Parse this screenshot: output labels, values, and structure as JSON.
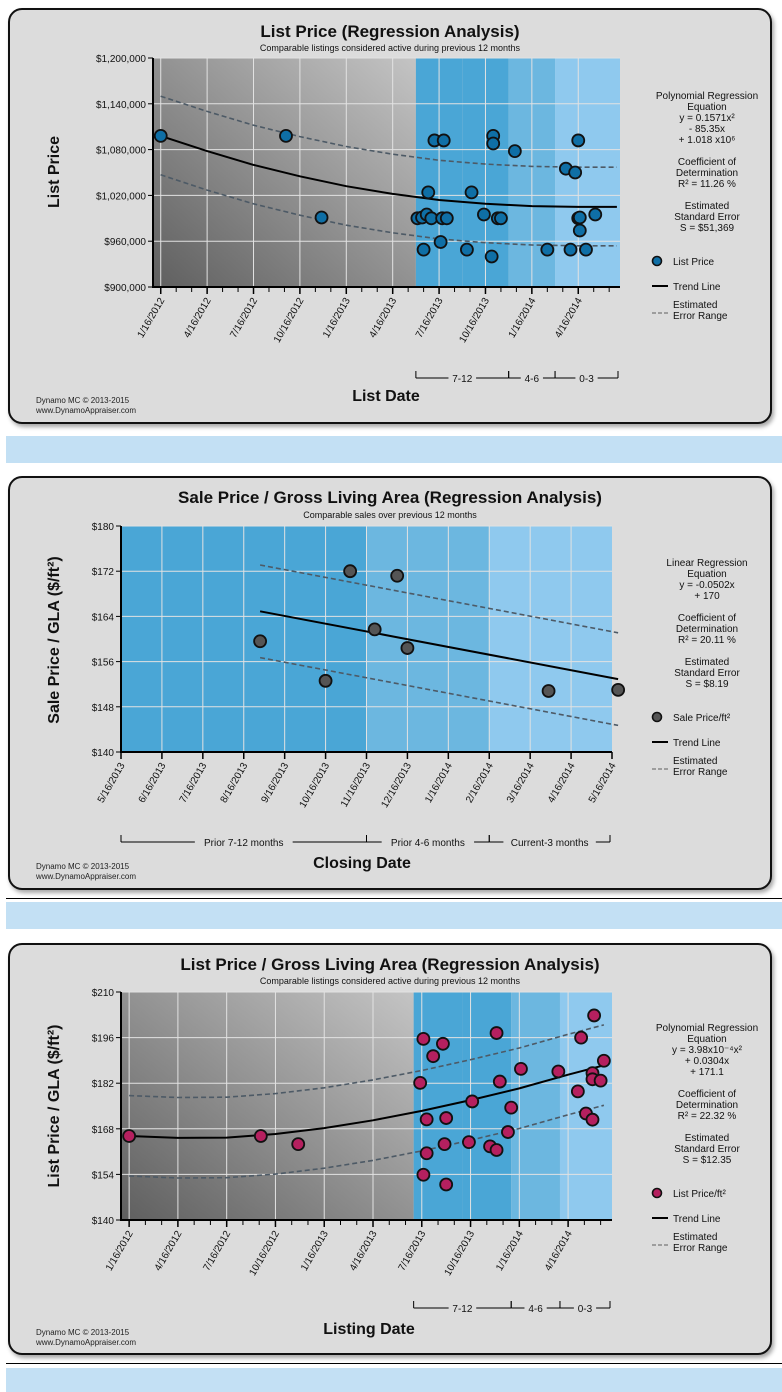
{
  "footer": {
    "line1": "Dynamo MC  © 2013-2015",
    "line2": "www.DynamoAppraiser.com"
  },
  "chart_data": [
    {
      "id": "list-price",
      "type": "scatter",
      "title": "List Price (Regression Analysis)",
      "subtitle": "Comparable listings considered active during previous 12 months",
      "xlabel": "List Date",
      "ylabel": "List Price",
      "x_unit": "months since 1/16/2012",
      "xlim": [
        -0.5,
        29.7
      ],
      "ylim": [
        900000,
        1200000
      ],
      "yticks": [
        900000,
        960000,
        1020000,
        1080000,
        1140000,
        1200000
      ],
      "ytick_labels": [
        "$900,000",
        "$960,000",
        "$1,020,000",
        "$1,080,000",
        "$1,140,000",
        "$1,200,000"
      ],
      "xticks": [
        0,
        3,
        6,
        9,
        12,
        15,
        18,
        21,
        24,
        27
      ],
      "xtick_labels": [
        "1/16/2012",
        "4/16/2012",
        "7/16/2012",
        "10/16/2012",
        "1/16/2013",
        "4/16/2013",
        "7/16/2013",
        "10/16/2013",
        "1/16/2014",
        "4/16/2014"
      ],
      "minor_tick_step": 1,
      "grid": true,
      "bands": [
        {
          "from": -0.5,
          "to": 16.5,
          "style": "gray",
          "label": ""
        },
        {
          "from": 16.5,
          "to": 19.5,
          "color": "#4aa6d6",
          "label": ""
        },
        {
          "from": 19.5,
          "to": 22.5,
          "color": "#4aa6d6",
          "label": ""
        },
        {
          "from": 22.5,
          "to": 25.5,
          "color": "#6cb7e0",
          "label": ""
        },
        {
          "from": 25.5,
          "to": 29.7,
          "color": "#8fc9ee",
          "label": ""
        }
      ],
      "period_brackets": [
        {
          "from": 16.5,
          "to": 22.5,
          "label": "7-12"
        },
        {
          "from": 22.5,
          "to": 25.5,
          "label": "4-6"
        },
        {
          "from": 25.5,
          "to": 29.7,
          "label": "0-3"
        }
      ],
      "series": [
        {
          "name": "List Price",
          "marker_color": "#0f6fa6",
          "points": [
            [
              0.0,
              1098000
            ],
            [
              8.1,
              1098000
            ],
            [
              10.4,
              991000
            ],
            [
              16.6,
              990000
            ],
            [
              16.9,
              991000
            ],
            [
              17.0,
              949000
            ],
            [
              17.2,
              995000
            ],
            [
              17.3,
              1024000
            ],
            [
              17.5,
              990000
            ],
            [
              17.7,
              1092000
            ],
            [
              18.1,
              959000
            ],
            [
              18.2,
              990000
            ],
            [
              18.3,
              1092000
            ],
            [
              18.5,
              990000
            ],
            [
              19.8,
              949000
            ],
            [
              20.1,
              1024000
            ],
            [
              20.9,
              995000
            ],
            [
              21.4,
              940000
            ],
            [
              21.5,
              1098000
            ],
            [
              21.5,
              1088000
            ],
            [
              21.8,
              990000
            ],
            [
              22.0,
              990000
            ],
            [
              22.9,
              1078000
            ],
            [
              25.0,
              949000
            ],
            [
              26.2,
              1055000
            ],
            [
              26.5,
              949000
            ],
            [
              26.8,
              1050000
            ],
            [
              27.0,
              1092000
            ],
            [
              27.0,
              990000
            ],
            [
              27.1,
              974000
            ],
            [
              27.1,
              991000
            ],
            [
              27.5,
              949000
            ],
            [
              28.1,
              995000
            ]
          ]
        }
      ],
      "trend_line": {
        "kind": "polynomial",
        "points": [
          [
            0,
            1098000
          ],
          [
            3,
            1078000
          ],
          [
            6,
            1060000
          ],
          [
            9,
            1045000
          ],
          [
            12,
            1032000
          ],
          [
            15,
            1022000
          ],
          [
            18,
            1014000
          ],
          [
            21,
            1009000
          ],
          [
            24,
            1006000
          ],
          [
            27,
            1005000
          ],
          [
            29.5,
            1005000
          ]
        ]
      },
      "error_upper": [
        [
          0,
          1150000
        ],
        [
          3,
          1130000
        ],
        [
          6,
          1112000
        ],
        [
          9,
          1097000
        ],
        [
          12,
          1084000
        ],
        [
          15,
          1074000
        ],
        [
          18,
          1066000
        ],
        [
          21,
          1061000
        ],
        [
          24,
          1058000
        ],
        [
          27,
          1057000
        ],
        [
          29.5,
          1057000
        ]
      ],
      "error_lower": [
        [
          0,
          1047000
        ],
        [
          3,
          1027000
        ],
        [
          6,
          1009000
        ],
        [
          9,
          994000
        ],
        [
          12,
          981000
        ],
        [
          15,
          971000
        ],
        [
          18,
          963000
        ],
        [
          21,
          958000
        ],
        [
          24,
          955000
        ],
        [
          27,
          954000
        ],
        [
          29.5,
          954000
        ]
      ],
      "legend": {
        "position": "right",
        "stats": [
          "Polynomial Regression",
          "Equation",
          "y = 0.1571x²",
          "- 85.35x",
          "+ 1.018 x10⁶",
          "",
          "Coefficient of",
          "Determination",
          "R² = 11.26 %",
          "",
          "Estimated",
          "Standard Error",
          "S = $51,369"
        ],
        "entries": [
          "List Price",
          "Trend Line",
          "Estimated",
          "Error Range"
        ]
      }
    },
    {
      "id": "sale-price-gla",
      "type": "scatter",
      "title": "Sale Price / Gross Living Area (Regression Analysis)",
      "subtitle": "Comparable sales over previous 12 months",
      "xlabel": "Closing Date",
      "ylabel": "Sale Price / GLA ($/ft²)",
      "x_unit": "months since 5/16/2013",
      "xlim": [
        0,
        12
      ],
      "ylim": [
        140,
        180
      ],
      "yticks": [
        140,
        148,
        156,
        164,
        172,
        180
      ],
      "ytick_labels": [
        "$140",
        "$148",
        "$156",
        "$164",
        "$172",
        "$180"
      ],
      "xticks": [
        0,
        1,
        2,
        3,
        4,
        5,
        6,
        7,
        8,
        9,
        10,
        11,
        12
      ],
      "xtick_labels": [
        "5/16/2013",
        "6/16/2013",
        "7/16/2013",
        "8/16/2013",
        "9/16/2013",
        "10/16/2013",
        "11/16/2013",
        "12/16/2013",
        "1/16/2014",
        "2/16/2014",
        "3/16/2014",
        "4/16/2014",
        "5/16/2014"
      ],
      "minor_tick_step": 0,
      "grid": true,
      "bands": [
        {
          "from": 0,
          "to": 6,
          "color": "#4aa6d6",
          "label": ""
        },
        {
          "from": 6,
          "to": 9,
          "color": "#6cb7e0",
          "label": ""
        },
        {
          "from": 9,
          "to": 12,
          "color": "#8fc9ee",
          "label": ""
        }
      ],
      "period_brackets": [
        {
          "from": 0,
          "to": 6,
          "label": "Prior 7-12 months"
        },
        {
          "from": 6,
          "to": 9,
          "label": "Prior 4-6 months"
        },
        {
          "from": 9,
          "to": 12,
          "label": "Current-3 months"
        }
      ],
      "series": [
        {
          "name": "Sale Price/ft²",
          "marker_color": "#555555",
          "points": [
            [
              3.4,
              159.6
            ],
            [
              5.0,
              152.6
            ],
            [
              5.6,
              172.0
            ],
            [
              6.2,
              161.7
            ],
            [
              6.75,
              171.2
            ],
            [
              7.0,
              158.4
            ],
            [
              10.45,
              150.8
            ],
            [
              12.15,
              151.0
            ]
          ]
        }
      ],
      "trend_line": {
        "kind": "linear",
        "points": [
          [
            3.4,
            164.9
          ],
          [
            12.15,
            152.9
          ]
        ]
      },
      "error_upper": [
        [
          3.4,
          173.1
        ],
        [
          12.15,
          161.1
        ]
      ],
      "error_lower": [
        [
          3.4,
          156.7
        ],
        [
          12.15,
          144.7
        ]
      ],
      "legend": {
        "position": "right",
        "stats": [
          "Linear Regression",
          "Equation",
          "y = -0.0502x",
          "+ 170",
          "",
          "Coefficient of",
          "Determination",
          "R² = 20.11 %",
          "",
          "Estimated",
          "Standard Error",
          "S = $8.19"
        ],
        "entries": [
          "Sale Price/ft²",
          "Trend Line",
          "Estimated",
          "Error Range"
        ]
      }
    },
    {
      "id": "list-price-gla",
      "type": "scatter",
      "title": "List Price / Gross Living Area (Regression Analysis)",
      "subtitle": "Comparable listings considered active during previous 12 months",
      "xlabel": "Listing Date",
      "ylabel": "List Price / GLA ($/ft²)",
      "x_unit": "months since 1/16/2012",
      "xlim": [
        -0.5,
        29.7
      ],
      "ylim": [
        140,
        210
      ],
      "yticks": [
        140,
        154,
        168,
        182,
        196,
        210
      ],
      "ytick_labels": [
        "$140",
        "$154",
        "$168",
        "$182",
        "$196",
        "$210"
      ],
      "xticks": [
        0,
        3,
        6,
        9,
        12,
        15,
        18,
        21,
        24,
        27
      ],
      "xtick_labels": [
        "1/16/2012",
        "4/16/2012",
        "7/16/2012",
        "10/16/2012",
        "1/16/2013",
        "4/16/2013",
        "7/16/2013",
        "10/16/2013",
        "1/16/2014",
        "4/16/2014"
      ],
      "minor_tick_step": 1,
      "grid": true,
      "bands": [
        {
          "from": -0.5,
          "to": 17.5,
          "style": "gray",
          "label": ""
        },
        {
          "from": 17.5,
          "to": 20.5,
          "color": "#4aa6d6",
          "label": ""
        },
        {
          "from": 20.5,
          "to": 23.5,
          "color": "#4aa6d6",
          "label": ""
        },
        {
          "from": 23.5,
          "to": 26.5,
          "color": "#6cb7e0",
          "label": ""
        },
        {
          "from": 26.5,
          "to": 29.7,
          "color": "#8fc9ee",
          "label": ""
        }
      ],
      "period_brackets": [
        {
          "from": 17.5,
          "to": 23.5,
          "label": "7-12"
        },
        {
          "from": 23.5,
          "to": 26.5,
          "label": "4-6"
        },
        {
          "from": 26.5,
          "to": 29.7,
          "label": "0-3"
        }
      ],
      "series": [
        {
          "name": "List Price/ft²",
          "marker_color": "#b5205f",
          "points": [
            [
              0.0,
              165.8
            ],
            [
              8.1,
              165.8
            ],
            [
              10.4,
              163.3
            ],
            [
              17.9,
              182.1
            ],
            [
              18.1,
              195.6
            ],
            [
              18.1,
              153.9
            ],
            [
              18.3,
              170.9
            ],
            [
              18.3,
              160.5
            ],
            [
              18.7,
              190.3
            ],
            [
              19.3,
              194.1
            ],
            [
              19.4,
              163.3
            ],
            [
              19.5,
              150.9
            ],
            [
              19.5,
              171.3
            ],
            [
              20.9,
              163.9
            ],
            [
              21.1,
              176.4
            ],
            [
              22.2,
              162.6
            ],
            [
              22.6,
              161.5
            ],
            [
              22.6,
              197.4
            ],
            [
              22.8,
              182.5
            ],
            [
              23.3,
              167.0
            ],
            [
              23.5,
              174.5
            ],
            [
              24.1,
              186.4
            ],
            [
              26.4,
              185.6
            ],
            [
              27.6,
              179.5
            ],
            [
              27.8,
              196.0
            ],
            [
              28.1,
              172.7
            ],
            [
              28.5,
              185.1
            ],
            [
              28.5,
              183.2
            ],
            [
              28.5,
              170.8
            ],
            [
              28.6,
              202.8
            ],
            [
              29.0,
              182.8
            ],
            [
              29.2,
              188.9
            ]
          ]
        }
      ],
      "trend_line": {
        "kind": "polynomial",
        "points": [
          [
            0,
            165.8
          ],
          [
            3,
            165.2
          ],
          [
            6,
            165.3
          ],
          [
            9,
            166.4
          ],
          [
            12,
            168.2
          ],
          [
            15,
            170.6
          ],
          [
            18,
            173.5
          ],
          [
            21,
            176.8
          ],
          [
            24,
            180.4
          ],
          [
            27,
            184.6
          ],
          [
            29.2,
            187.5
          ]
        ]
      },
      "error_upper": [
        [
          0,
          178.2
        ],
        [
          3,
          177.6
        ],
        [
          6,
          177.7
        ],
        [
          9,
          178.8
        ],
        [
          12,
          180.6
        ],
        [
          15,
          183.0
        ],
        [
          18,
          185.9
        ],
        [
          21,
          189.2
        ],
        [
          24,
          192.8
        ],
        [
          27,
          197.0
        ],
        [
          29.2,
          199.9
        ]
      ],
      "error_lower": [
        [
          0,
          153.5
        ],
        [
          3,
          152.9
        ],
        [
          6,
          153.0
        ],
        [
          9,
          154.1
        ],
        [
          12,
          155.9
        ],
        [
          15,
          158.3
        ],
        [
          18,
          161.2
        ],
        [
          21,
          164.5
        ],
        [
          24,
          168.1
        ],
        [
          27,
          172.3
        ],
        [
          29.2,
          175.2
        ]
      ],
      "legend": {
        "position": "right",
        "stats": [
          "Polynomial Regression",
          "Equation",
          "y = 3.98x10⁻⁴x²",
          "+ 0.0304x",
          "+ 171.1",
          "",
          "Coefficient of",
          "Determination",
          "R² = 22.32 %",
          "",
          "Estimated",
          "Standard Error",
          "S = $12.35"
        ],
        "entries": [
          "List Price/ft²",
          "Trend Line",
          "Estimated",
          "Error Range"
        ]
      }
    }
  ]
}
